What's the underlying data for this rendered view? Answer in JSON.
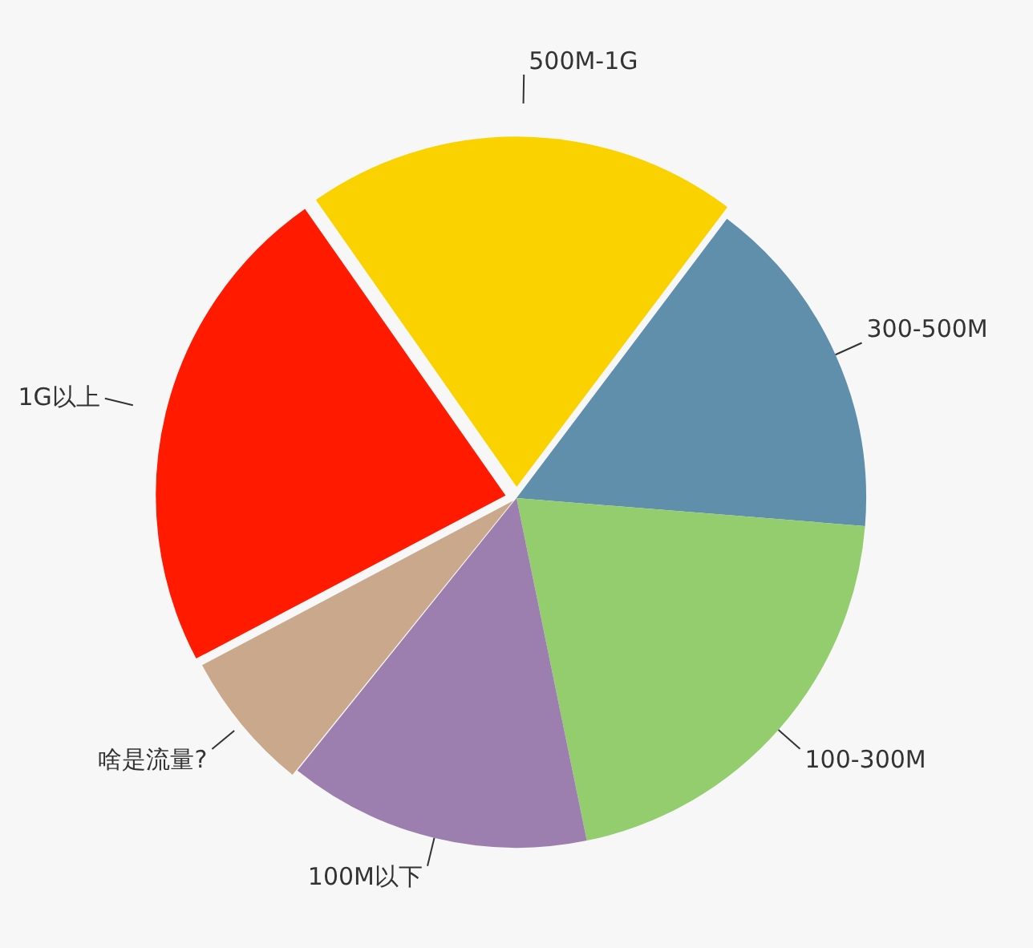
{
  "chart_data": {
    "type": "pie",
    "categories": [
      "500M-1G",
      "300-500M",
      "100-300M",
      "100M以下",
      "啥是流量?",
      "1G以上"
    ],
    "values": [
      20,
      16,
      20.5,
      14,
      6.5,
      23
    ],
    "colors": [
      "#fad200",
      "#5f8fab",
      "#93cd6e",
      "#9c7fae",
      "#c9a88c",
      "#ff1a00"
    ]
  }
}
